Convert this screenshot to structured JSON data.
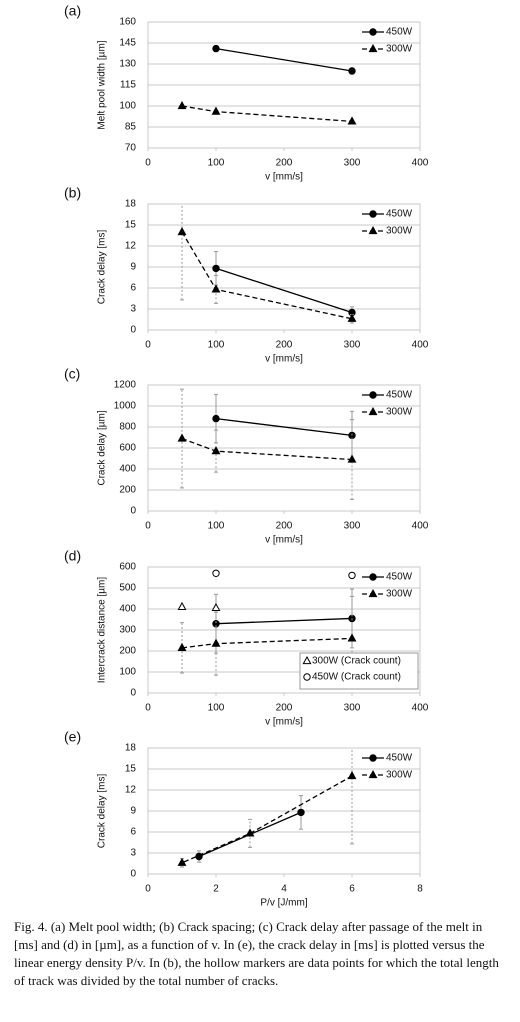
{
  "chart_data": [
    {
      "type": "line",
      "panel": "(a)",
      "ylabel": "Melt pool width [µm]",
      "xlabel": "v [mm/s]",
      "xlim": [
        0,
        400
      ],
      "xticks": [
        0,
        100,
        200,
        300,
        400
      ],
      "ylim": [
        70,
        160
      ],
      "yticks": [
        70,
        85,
        100,
        115,
        130,
        145,
        160
      ],
      "grid": true,
      "series": [
        {
          "name": "450W",
          "color": "#000000",
          "dash": false,
          "marker": "circle",
          "filled": true,
          "legend": "upper right",
          "x": [
            100,
            300
          ],
          "values": [
            141,
            125
          ]
        },
        {
          "name": "300W",
          "color": "#000000",
          "dash": true,
          "marker": "triangle",
          "filled": true,
          "legend": "upper right",
          "x": [
            50,
            100,
            300
          ],
          "values": [
            100,
            96,
            89
          ]
        }
      ]
    },
    {
      "type": "line",
      "panel": "(b)",
      "ylabel": "Crack delay [ms]",
      "xlabel": "v [mm/s]",
      "xlim": [
        0,
        400
      ],
      "xticks": [
        0,
        100,
        200,
        300,
        400
      ],
      "ylim": [
        0,
        18
      ],
      "yticks": [
        0,
        3,
        6,
        9,
        12,
        15,
        18
      ],
      "grid": true,
      "series": [
        {
          "name": "450W",
          "color": "#000000",
          "dash": false,
          "marker": "circle",
          "filled": true,
          "legend": "upper right",
          "x": [
            100,
            300
          ],
          "values": [
            8.8,
            2.5
          ],
          "errors": [
            2.4,
            0.8
          ]
        },
        {
          "name": "300W",
          "color": "#000000",
          "dash": true,
          "marker": "triangle",
          "filled": true,
          "legend": "upper right",
          "x": [
            50,
            100,
            300
          ],
          "values": [
            14,
            5.8,
            1.6
          ],
          "errors": [
            9.7,
            2,
            0.6
          ]
        }
      ]
    },
    {
      "type": "line",
      "panel": "(c)",
      "ylabel": "Crack delay [µm]",
      "xlabel": "v [mm/s]",
      "xlim": [
        0,
        400
      ],
      "xticks": [
        0,
        100,
        200,
        300,
        400
      ],
      "ylim": [
        0,
        1200
      ],
      "yticks": [
        0,
        200,
        400,
        600,
        800,
        1000,
        1200
      ],
      "grid": true,
      "series": [
        {
          "name": "450W",
          "color": "#000000",
          "dash": false,
          "marker": "circle",
          "filled": true,
          "legend": "upper right",
          "x": [
            100,
            300
          ],
          "values": [
            880,
            720
          ],
          "errors": [
            230,
            230
          ]
        },
        {
          "name": "300W",
          "color": "#000000",
          "dash": true,
          "marker": "triangle",
          "filled": true,
          "legend": "upper right",
          "x": [
            50,
            100,
            300
          ],
          "values": [
            690,
            570,
            490
          ],
          "errors": [
            470,
            200,
            380
          ]
        }
      ]
    },
    {
      "type": "line",
      "panel": "(d)",
      "ylabel": "Intercrack distance [µm]",
      "xlabel": "v [mm/s]",
      "xlim": [
        0,
        400
      ],
      "xticks": [
        0,
        100,
        200,
        300,
        400
      ],
      "ylim": [
        0,
        600
      ],
      "yticks": [
        0,
        100,
        200,
        300,
        400,
        500,
        600
      ],
      "grid": true,
      "series": [
        {
          "name": "450W",
          "color": "#000000",
          "dash": false,
          "marker": "circle",
          "filled": true,
          "legend": "upper right",
          "x": [
            100,
            300
          ],
          "values": [
            330,
            355
          ],
          "errors": [
            140,
            140
          ]
        },
        {
          "name": "300W",
          "color": "#000000",
          "dash": true,
          "marker": "triangle",
          "filled": true,
          "legend": "upper right",
          "x": [
            50,
            100,
            300
          ],
          "values": [
            215,
            235,
            260
          ],
          "errors": [
            120,
            150,
            200
          ]
        },
        {
          "name": "300W (Crack count)",
          "color": "#000000",
          "line": false,
          "marker": "triangle",
          "filled": false,
          "legend": "lower right",
          "x": [
            50,
            100
          ],
          "values": [
            410,
            405
          ]
        },
        {
          "name": "450W (Crack count)",
          "color": "#000000",
          "line": false,
          "marker": "circle",
          "filled": false,
          "legend": "lower right",
          "x": [
            100,
            300
          ],
          "values": [
            570,
            560
          ]
        }
      ]
    },
    {
      "type": "line",
      "panel": "(e)",
      "ylabel": "Crack delay [ms]",
      "xlabel": "P/v [J/mm]",
      "xlim": [
        0,
        8
      ],
      "xticks": [
        0,
        2,
        4,
        6,
        8
      ],
      "ylim": [
        0,
        18
      ],
      "yticks": [
        0,
        3,
        6,
        9,
        12,
        15,
        18
      ],
      "grid": true,
      "series": [
        {
          "name": "450W",
          "color": "#000000",
          "dash": false,
          "marker": "circle",
          "filled": true,
          "legend": "upper right",
          "x": [
            4.5,
            1.5
          ],
          "values": [
            8.8,
            2.5
          ],
          "errors": [
            2.4,
            0.8
          ]
        },
        {
          "name": "300W",
          "color": "#000000",
          "dash": true,
          "marker": "triangle",
          "filled": true,
          "legend": "upper right",
          "x": [
            6,
            3,
            1
          ],
          "values": [
            14,
            5.8,
            1.6
          ],
          "errors": [
            9.7,
            2,
            0.6
          ]
        }
      ]
    }
  ],
  "caption": "Fig. 4. (a) Melt pool width; (b) Crack spacing; (c) Crack delay after passage of the melt in [ms] and (d) in [µm], as a function of v. In (e), the crack delay in [ms] is plotted versus the linear energy density P/v. In (b), the hollow markers are data points for which the total length of track was divided by the total number of cracks."
}
